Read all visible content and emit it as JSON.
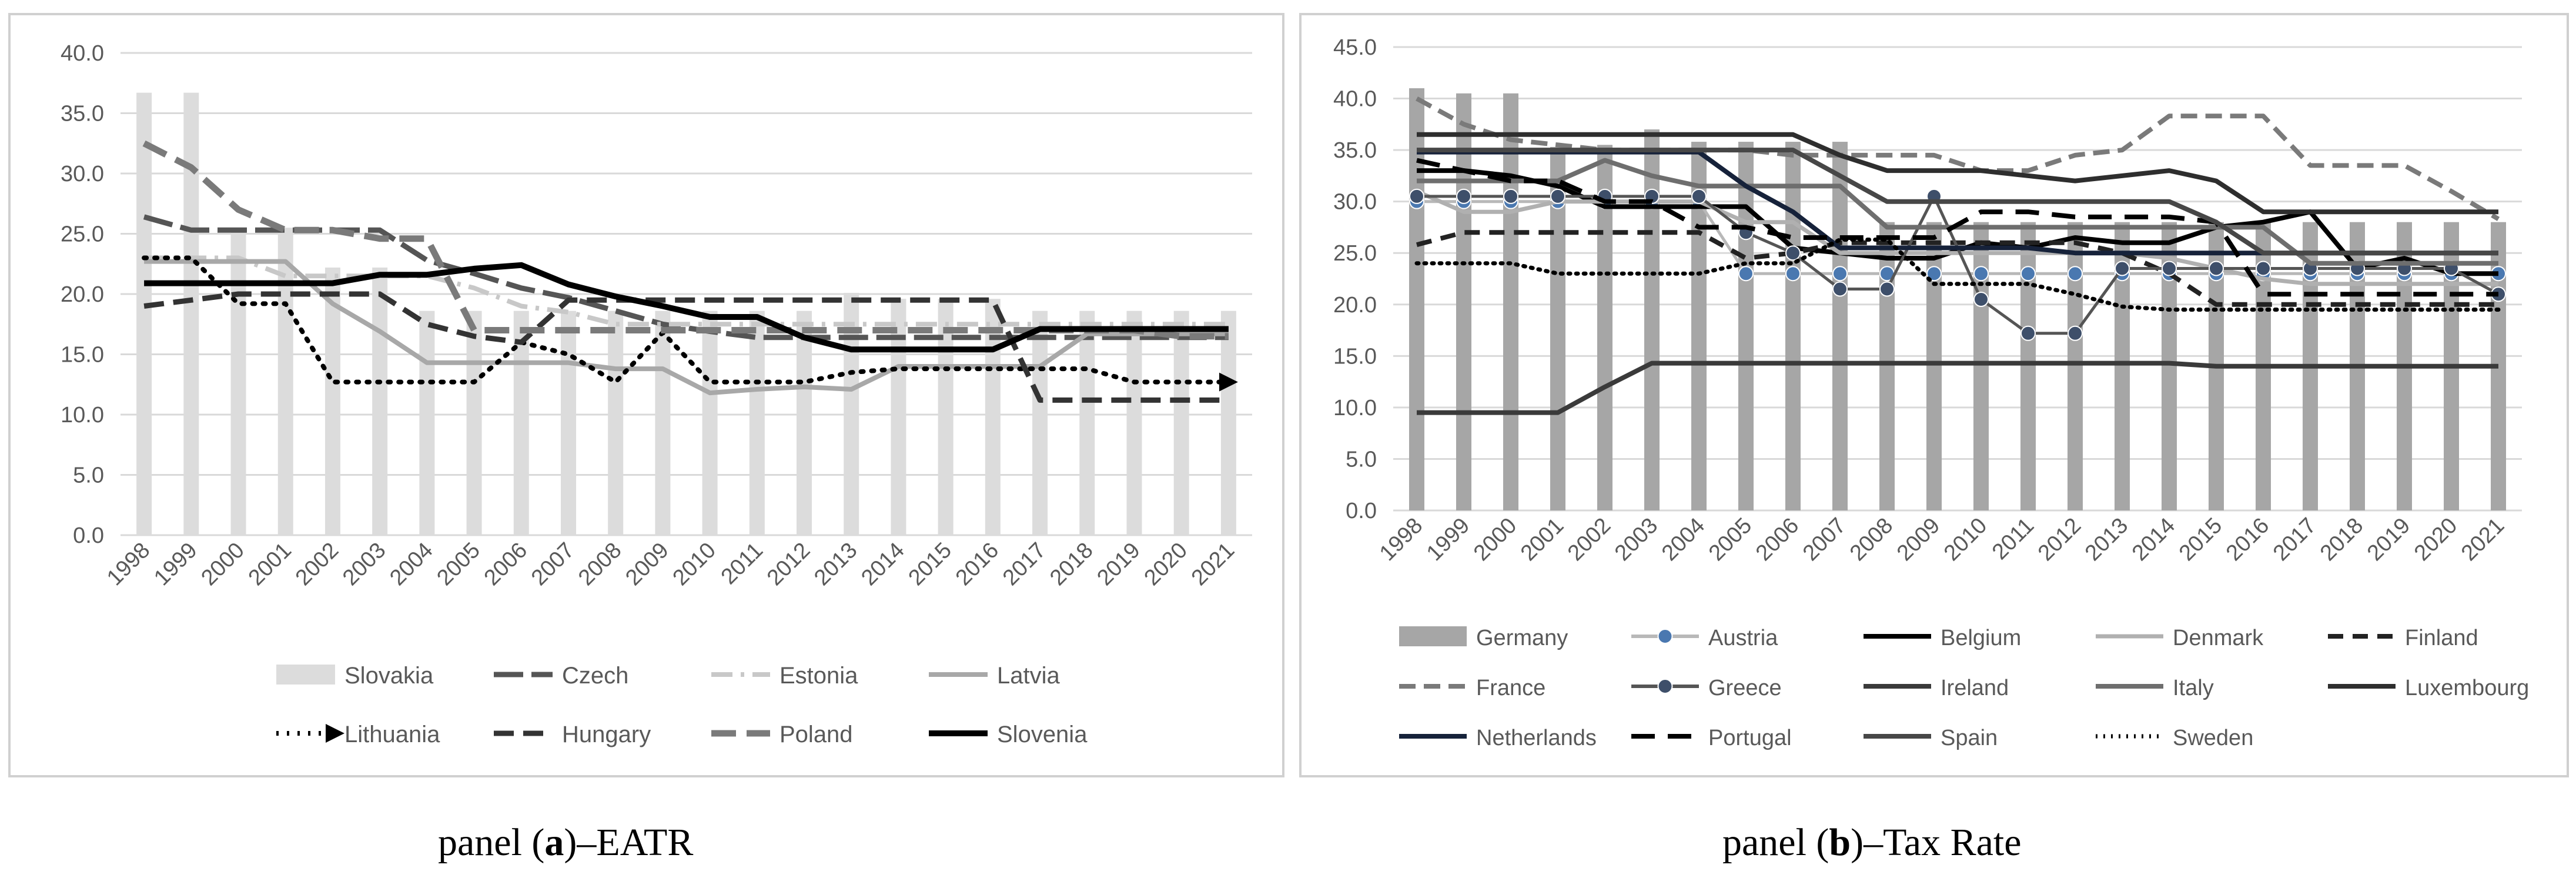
{
  "captions": {
    "a": {
      "prefix": "panel (",
      "letter": "a",
      "suffix": ")–EATR"
    },
    "b": {
      "prefix": "panel (",
      "letter": "b",
      "suffix": ")–Tax Rate"
    }
  },
  "chart_data": [
    {
      "id": "panel-a",
      "type": "bar+line",
      "title": "panel (a)–EATR",
      "categories": [
        "1998",
        "1999",
        "2000",
        "2001",
        "2002",
        "2003",
        "2004",
        "2005",
        "2006",
        "2007",
        "2008",
        "2009",
        "2010",
        "2011",
        "2012",
        "2013",
        "2014",
        "2015",
        "2016",
        "2017",
        "2018",
        "2019",
        "2020",
        "2021"
      ],
      "ylim": [
        0,
        40
      ],
      "yticks": [
        "0.0",
        "5.0",
        "10.0",
        "15.0",
        "20.0",
        "25.0",
        "30.0",
        "35.0",
        "40.0"
      ],
      "gridlines": true,
      "legend_position": "bottom",
      "bar_series": {
        "name": "Slovakia",
        "color": "#dcdcdc",
        "values": [
          36.7,
          36.7,
          25.5,
          25.5,
          22.2,
          22.2,
          18.6,
          18.6,
          18.6,
          18.6,
          18.6,
          18.6,
          18.6,
          18.6,
          18.6,
          20.1,
          19.6,
          19.6,
          19.6,
          18.6,
          18.6,
          18.6,
          18.6,
          18.6
        ]
      },
      "series": [
        {
          "name": "Czech",
          "color": "#555555",
          "dash": "50,14",
          "width": 9,
          "values": [
            26.4,
            25.3,
            25.3,
            25.3,
            25.3,
            25.3,
            22.8,
            21.7,
            20.5,
            19.7,
            18.6,
            17.5,
            16.9,
            16.4,
            16.4,
            16.4,
            16.4,
            16.4,
            16.4,
            16.4,
            16.4,
            16.4,
            16.4,
            16.4
          ]
        },
        {
          "name": "Estonia",
          "color": "#c8c8c8",
          "dash": "36,14,6,14",
          "width": 8,
          "values": [
            23.0,
            23.0,
            23.0,
            21.5,
            21.5,
            21.5,
            21.5,
            20.5,
            19.0,
            18.5,
            17.5,
            17.5,
            17.5,
            17.5,
            17.5,
            17.5,
            17.5,
            17.5,
            17.5,
            17.5,
            17.5,
            17.5,
            17.5,
            17.5
          ]
        },
        {
          "name": "Latvia",
          "color": "#a8a8a8",
          "dash": "",
          "width": 8,
          "values": [
            22.7,
            22.7,
            22.7,
            22.7,
            19.2,
            16.9,
            14.3,
            14.3,
            14.3,
            14.3,
            13.8,
            13.8,
            11.8,
            12.1,
            12.3,
            12.1,
            14.0,
            14.0,
            14.0,
            14.0,
            16.7,
            16.7,
            16.7,
            16.7
          ]
        },
        {
          "name": "Lithuania",
          "color": "#000000",
          "dash": "4,14",
          "width": 8,
          "arrow": true,
          "values": [
            23.0,
            23.0,
            19.2,
            19.2,
            12.7,
            12.7,
            12.7,
            12.7,
            16.0,
            15.0,
            12.7,
            16.8,
            12.7,
            12.7,
            12.7,
            13.5,
            13.8,
            13.8,
            13.8,
            13.8,
            13.8,
            12.7,
            12.7,
            12.7
          ]
        },
        {
          "name": "Hungary",
          "color": "#333333",
          "dash": "34,16",
          "width": 9,
          "values": [
            19.0,
            19.5,
            20.0,
            20.0,
            20.0,
            20.0,
            17.5,
            16.5,
            16.0,
            19.5,
            19.5,
            19.5,
            19.5,
            19.5,
            19.5,
            19.5,
            19.5,
            19.5,
            19.5,
            11.2,
            11.2,
            11.2,
            11.2,
            11.2
          ]
        },
        {
          "name": "Poland",
          "color": "#7a7a7a",
          "dash": "42,18",
          "width": 11,
          "values": [
            32.5,
            30.5,
            27.0,
            25.3,
            25.3,
            24.6,
            24.6,
            17.0,
            17.0,
            17.0,
            17.0,
            17.0,
            17.0,
            17.0,
            17.0,
            17.0,
            17.0,
            17.0,
            17.0,
            17.0,
            17.0,
            17.0,
            16.5,
            16.5
          ]
        },
        {
          "name": "Slovenia",
          "color": "#000000",
          "dash": "",
          "width": 10,
          "values": [
            20.9,
            20.9,
            20.9,
            20.9,
            20.9,
            21.6,
            21.6,
            22.1,
            22.4,
            20.8,
            19.8,
            19.0,
            18.1,
            18.1,
            16.4,
            15.4,
            15.4,
            15.4,
            15.4,
            17.1,
            17.1,
            17.1,
            17.1,
            17.1
          ]
        }
      ],
      "legend": [
        "Slovakia",
        "Czech",
        "Estonia",
        "Latvia",
        "Lithuania",
        "Hungary",
        "Poland",
        "Slovenia"
      ]
    },
    {
      "id": "panel-b",
      "type": "bar+line",
      "title": "panel (b)–Tax Rate",
      "categories": [
        "1998",
        "1999",
        "2000",
        "2001",
        "2002",
        "2003",
        "2004",
        "2005",
        "2006",
        "2007",
        "2008",
        "2009",
        "2010",
        "2011",
        "2012",
        "2013",
        "2014",
        "2015",
        "2016",
        "2017",
        "2018",
        "2019",
        "2020",
        "2021"
      ],
      "ylim": [
        0,
        45
      ],
      "yticks": [
        "0.0",
        "5.0",
        "10.0",
        "15.0",
        "20.0",
        "25.0",
        "30.0",
        "35.0",
        "40.0",
        "45.0"
      ],
      "gridlines": true,
      "legend_position": "bottom",
      "bar_series": {
        "name": "Germany",
        "color": "#a6a6a6",
        "values": [
          41.0,
          40.5,
          40.5,
          35.3,
          35.5,
          37.0,
          35.8,
          35.8,
          35.8,
          35.8,
          28.0,
          28.0,
          28.0,
          28.0,
          28.0,
          28.0,
          28.0,
          28.0,
          28.0,
          28.0,
          28.0,
          28.0,
          28.0,
          28.0
        ]
      },
      "series": [
        {
          "name": "Austria",
          "color": "#b8b8b8",
          "dash": "",
          "width": 5,
          "marker": "#4a78b0",
          "values": [
            30.0,
            30.0,
            30.0,
            30.0,
            30.0,
            30.0,
            30.0,
            23.0,
            23.0,
            23.0,
            23.0,
            23.0,
            23.0,
            23.0,
            23.0,
            23.0,
            23.0,
            23.0,
            23.0,
            23.0,
            23.0,
            23.0,
            23.0,
            23.0
          ]
        },
        {
          "name": "Belgium",
          "color": "#000000",
          "dash": "",
          "width": 8,
          "values": [
            33.0,
            33.0,
            32.5,
            31.5,
            29.5,
            29.5,
            29.5,
            29.5,
            25.5,
            25.0,
            24.5,
            24.5,
            26.0,
            25.5,
            26.5,
            26.0,
            26.0,
            27.5,
            28.0,
            29.0,
            23.5,
            24.5,
            23.0,
            23.0
          ]
        },
        {
          "name": "Denmark",
          "color": "#b0b0b0",
          "dash": "",
          "width": 7,
          "values": [
            31.0,
            29.0,
            29.0,
            30.0,
            30.0,
            30.0,
            30.0,
            28.0,
            28.0,
            25.0,
            25.0,
            25.0,
            25.0,
            25.0,
            25.0,
            25.0,
            24.5,
            23.5,
            22.5,
            22.0,
            22.0,
            22.0,
            22.0,
            22.0
          ]
        },
        {
          "name": "Finland",
          "color": "#222222",
          "dash": "26,16",
          "width": 8,
          "values": [
            25.8,
            27.0,
            27.0,
            27.0,
            27.0,
            27.0,
            27.0,
            24.5,
            25.0,
            26.0,
            26.0,
            26.0,
            26.0,
            26.0,
            26.0,
            25.0,
            23.0,
            20.0,
            20.0,
            20.0,
            20.0,
            20.0,
            20.0,
            20.0
          ]
        },
        {
          "name": "France",
          "color": "#7a7a7a",
          "dash": "28,14",
          "width": 8,
          "values": [
            40.0,
            37.5,
            36.0,
            35.5,
            35.0,
            35.0,
            35.0,
            35.0,
            34.5,
            34.5,
            34.5,
            34.5,
            33.0,
            33.0,
            34.5,
            35.0,
            38.3,
            38.3,
            38.3,
            33.5,
            33.5,
            33.5,
            31.0,
            28.3
          ]
        },
        {
          "name": "Greece",
          "color": "#555555",
          "dash": "",
          "width": 5,
          "marker": "#3e4f6a",
          "values": [
            30.5,
            30.5,
            30.5,
            30.5,
            30.5,
            30.5,
            30.5,
            27.0,
            25.0,
            21.5,
            21.5,
            30.5,
            20.5,
            17.2,
            17.2,
            23.5,
            23.5,
            23.5,
            23.5,
            23.5,
            23.5,
            23.5,
            23.5,
            21.0
          ]
        },
        {
          "name": "Ireland",
          "color": "#3a3a3a",
          "dash": "",
          "width": 8,
          "values": [
            9.5,
            9.5,
            9.5,
            9.5,
            12.0,
            14.3,
            14.3,
            14.3,
            14.3,
            14.3,
            14.3,
            14.3,
            14.3,
            14.3,
            14.3,
            14.3,
            14.3,
            14.0,
            14.0,
            14.0,
            14.0,
            14.0,
            14.0,
            14.0
          ]
        },
        {
          "name": "Italy",
          "color": "#6e6e6e",
          "dash": "",
          "width": 8,
          "values": [
            32.0,
            32.0,
            32.0,
            32.0,
            34.0,
            32.5,
            31.5,
            31.5,
            31.5,
            31.5,
            27.5,
            27.5,
            27.5,
            27.5,
            27.5,
            27.5,
            27.5,
            27.5,
            27.5,
            24.0,
            24.0,
            24.0,
            24.0,
            24.0
          ]
        },
        {
          "name": "Luxembourg",
          "color": "#2e2e2e",
          "dash": "",
          "width": 8,
          "values": [
            36.5,
            36.5,
            36.5,
            36.5,
            36.5,
            36.5,
            36.5,
            36.5,
            36.5,
            34.5,
            33.0,
            33.0,
            33.0,
            32.5,
            32.0,
            32.5,
            33.0,
            32.0,
            29.0,
            29.0,
            29.0,
            29.0,
            29.0,
            29.0
          ]
        },
        {
          "name": "Netherlands",
          "color": "#16223a",
          "dash": "",
          "width": 8,
          "values": [
            34.8,
            34.8,
            34.8,
            34.8,
            34.8,
            34.8,
            34.8,
            31.5,
            29.0,
            25.5,
            25.5,
            25.5,
            25.5,
            25.5,
            25.0,
            25.0,
            25.0,
            25.0,
            25.0,
            25.0,
            25.0,
            25.0,
            25.0,
            25.0
          ]
        },
        {
          "name": "Portugal",
          "color": "#000000",
          "dash": "40,22",
          "width": 8,
          "values": [
            34.0,
            33.0,
            32.0,
            32.0,
            30.0,
            30.0,
            27.5,
            27.5,
            26.5,
            26.5,
            26.5,
            26.5,
            29.0,
            29.0,
            28.5,
            28.5,
            28.5,
            28.0,
            21.0,
            21.0,
            21.0,
            21.0,
            21.0,
            21.0
          ]
        },
        {
          "name": "Spain",
          "color": "#474747",
          "dash": "",
          "width": 8,
          "values": [
            35.0,
            35.0,
            35.0,
            35.0,
            35.0,
            35.0,
            35.0,
            35.0,
            35.0,
            32.5,
            30.0,
            30.0,
            30.0,
            30.0,
            30.0,
            30.0,
            30.0,
            28.0,
            25.0,
            25.0,
            25.0,
            25.0,
            25.0,
            25.0
          ]
        },
        {
          "name": "Sweden",
          "color": "#000000",
          "dash": "3,10",
          "width": 7,
          "values": [
            24.0,
            24.0,
            24.0,
            23.0,
            23.0,
            23.0,
            23.0,
            24.0,
            24.0,
            26.3,
            26.3,
            22.0,
            22.0,
            22.0,
            21.0,
            19.8,
            19.5,
            19.5,
            19.5,
            19.5,
            19.5,
            19.5,
            19.5,
            19.5
          ]
        }
      ],
      "legend": [
        "Germany",
        "Austria",
        "Belgium",
        "Denmark",
        "Finland",
        "France",
        "Greece",
        "Ireland",
        "Italy",
        "Luxembourg",
        "Netherlands",
        "Portugal",
        "Spain",
        "Sweden"
      ]
    }
  ]
}
